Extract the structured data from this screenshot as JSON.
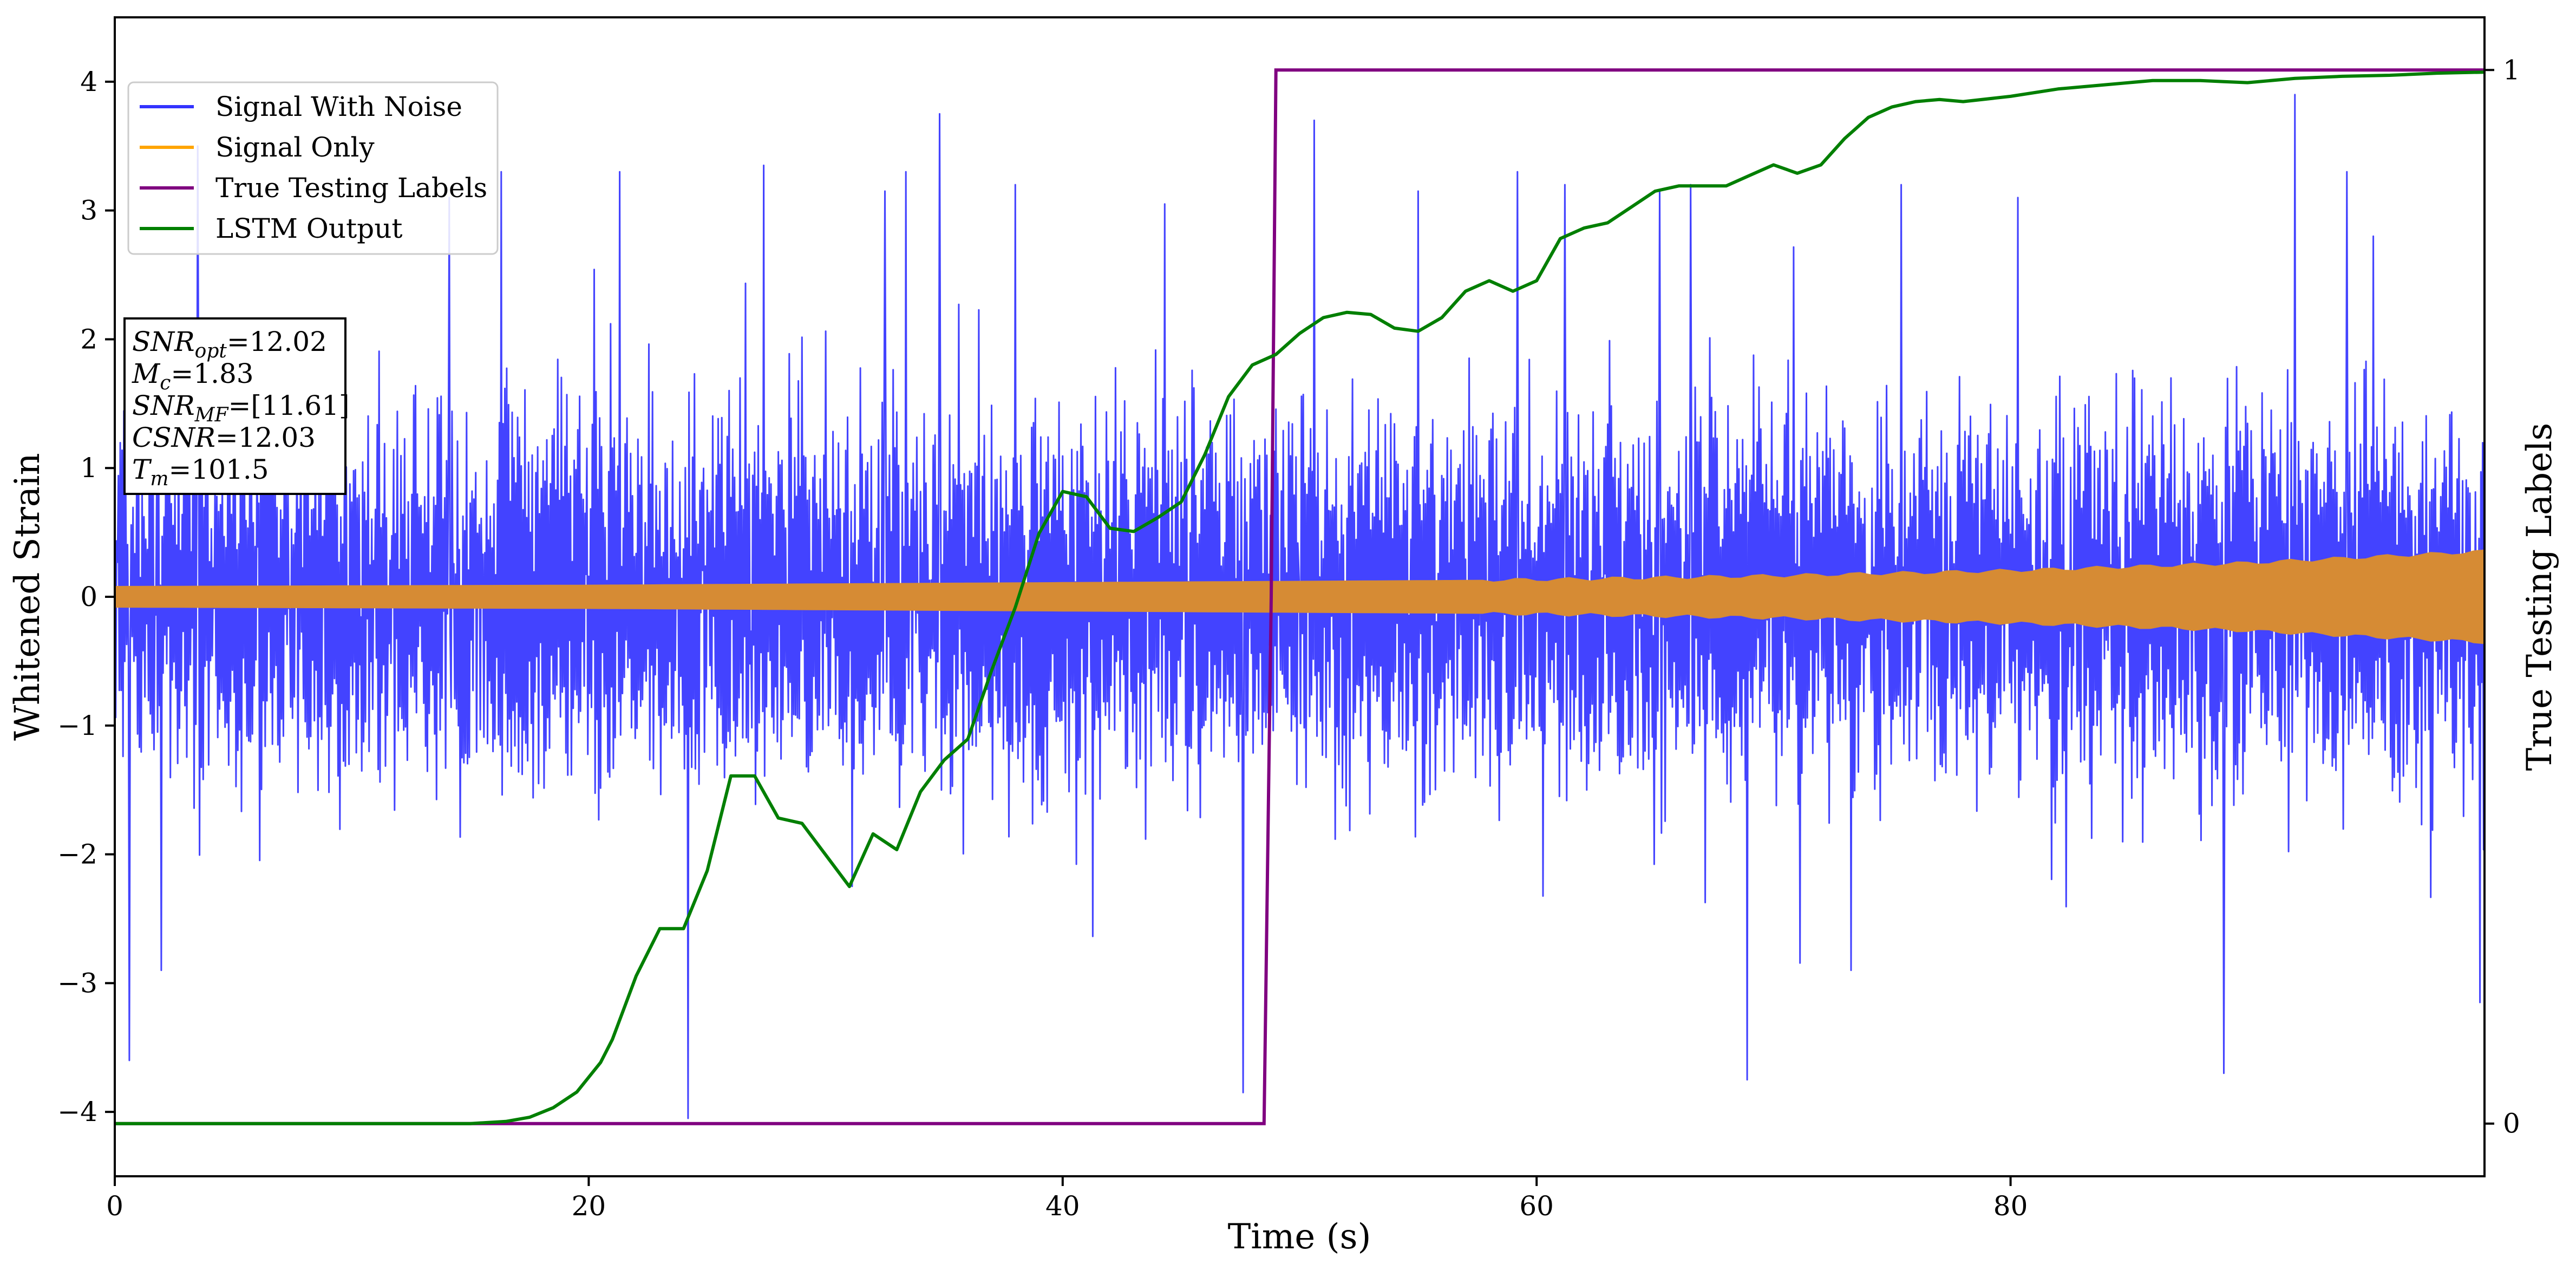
{
  "chart_data": {
    "type": "line",
    "xlabel": "Time (s)",
    "ylabel": "Whitened Strain",
    "y2label": "True Testing Labels",
    "xlim": [
      0,
      100
    ],
    "ylim": [
      -4.5,
      4.5
    ],
    "y2lim": [
      -0.05,
      1.05
    ],
    "x_ticks": [
      0,
      20,
      40,
      60,
      80
    ],
    "y_ticks": [
      -4,
      -3,
      -2,
      -1,
      0,
      1,
      2,
      3,
      4
    ],
    "y2_ticks": [
      0,
      1
    ],
    "legend": {
      "placement": "top-left",
      "entries": [
        {
          "label": "Signal With Noise",
          "color": "#3333ff"
        },
        {
          "label": "Signal Only",
          "color": "#ffa500"
        },
        {
          "label": "True Testing Labels",
          "color": "#800080"
        },
        {
          "label": "LSTM Output",
          "color": "#008000"
        }
      ]
    },
    "annotation": [
      {
        "var": "SNR",
        "sub": "opt",
        "text": "=12.02"
      },
      {
        "var": "M",
        "sub": "c",
        "text": "=1.83"
      },
      {
        "var": "SNR",
        "sub": "MF",
        "text": "=[11.61]"
      },
      {
        "var": "CSNR",
        "sub": "",
        "text": "=12.03"
      },
      {
        "var": "T",
        "sub": "m",
        "text": "=101.5"
      }
    ],
    "series": [
      {
        "name": "Signal With Noise",
        "axis": "left",
        "color": "#3333ff",
        "description_values": {
          "typical_band": [
            -1.6,
            1.6
          ],
          "peaks": [
            [
              0.6,
              -3.6
            ],
            [
              3.5,
              3.5
            ],
            [
              14.1,
              3.1
            ],
            [
              16.3,
              3.3
            ],
            [
              21.3,
              3.3
            ],
            [
              24.2,
              -4.05
            ],
            [
              27.4,
              3.35
            ],
            [
              32.5,
              3.15
            ],
            [
              33.4,
              3.3
            ],
            [
              34.8,
              3.75
            ],
            [
              38,
              3.2
            ],
            [
              44.3,
              3.05
            ],
            [
              47.6,
              -3.85
            ],
            [
              50.6,
              3.7
            ],
            [
              55,
              3.15
            ],
            [
              59.2,
              3.3
            ],
            [
              61.2,
              3.2
            ],
            [
              65.2,
              3.15
            ],
            [
              66.5,
              3.2
            ],
            [
              68.9,
              -3.75
            ],
            [
              75.4,
              3.2
            ],
            [
              80.3,
              3.1
            ],
            [
              89,
              -3.7
            ],
            [
              92,
              3.9
            ],
            [
              94.2,
              3.3
            ],
            [
              95.3,
              2.8
            ],
            [
              99.8,
              -3.15
            ]
          ]
        }
      },
      {
        "name": "Signal Only",
        "axis": "left",
        "color": "#d68b34",
        "envelope": {
          "x": [
            0,
            20,
            40,
            60,
            70,
            80,
            90,
            100
          ],
          "amp": [
            0.08,
            0.09,
            0.11,
            0.13,
            0.16,
            0.2,
            0.26,
            0.35
          ]
        }
      },
      {
        "name": "True Testing Labels",
        "axis": "right",
        "color": "#800080",
        "x": [
          0,
          48.5,
          48.8,
          49.0,
          100
        ],
        "y": [
          0,
          0,
          0.5,
          1,
          1
        ]
      },
      {
        "name": "LSTM Output",
        "axis": "right",
        "color": "#007f00",
        "x": [
          0,
          15,
          16.5,
          17.5,
          18.5,
          19.5,
          20.5,
          21,
          21.5,
          22,
          23,
          24,
          25,
          26,
          27,
          28,
          29,
          30,
          31,
          32,
          33,
          34,
          35,
          36,
          37,
          38,
          39,
          40,
          41,
          42,
          43,
          44,
          45,
          46,
          47,
          48,
          49,
          50,
          51,
          52,
          53,
          54,
          55,
          56,
          57,
          58,
          59,
          60,
          61,
          62,
          63,
          64,
          65,
          66,
          67,
          68,
          69,
          70,
          71,
          72,
          73,
          74,
          75,
          76,
          77,
          78,
          80,
          82,
          84,
          86,
          88,
          89,
          90,
          92,
          94,
          96,
          98,
          100
        ],
        "y": [
          0,
          0,
          0.002,
          0.006,
          0.015,
          0.03,
          0.058,
          0.08,
          0.11,
          0.14,
          0.185,
          0.185,
          0.24,
          0.33,
          0.33,
          0.29,
          0.285,
          0.255,
          0.225,
          0.275,
          0.26,
          0.315,
          0.345,
          0.365,
          0.43,
          0.49,
          0.56,
          0.6,
          0.595,
          0.565,
          0.562,
          0.575,
          0.59,
          0.635,
          0.69,
          0.72,
          0.73,
          0.75,
          0.765,
          0.77,
          0.768,
          0.755,
          0.752,
          0.765,
          0.79,
          0.8,
          0.79,
          0.8,
          0.84,
          0.85,
          0.855,
          0.87,
          0.885,
          0.89,
          0.89,
          0.89,
          0.9,
          0.91,
          0.902,
          0.91,
          0.935,
          0.955,
          0.965,
          0.97,
          0.972,
          0.97,
          0.975,
          0.982,
          0.986,
          0.99,
          0.99,
          0.989,
          0.988,
          0.992,
          0.994,
          0.995,
          0.997,
          0.998
        ]
      }
    ]
  }
}
